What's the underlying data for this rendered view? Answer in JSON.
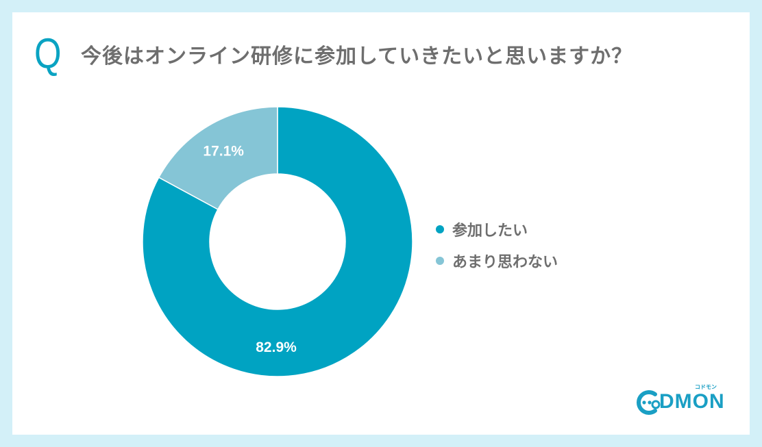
{
  "question_mark": "Q",
  "title": "今後はオンライン研修に参加していきたいと思いますか？",
  "colors": {
    "page_background": "#d3f0f8",
    "card_background": "#ffffff",
    "accent": "#0aa3c2",
    "series_primary": "#00a3c2",
    "series_secondary": "#85c5d6",
    "text": "#6e6e6e"
  },
  "legend": {
    "items": [
      {
        "label": "参加したい",
        "color": "#00a3c2"
      },
      {
        "label": "あまり思わない",
        "color": "#85c5d6"
      }
    ]
  },
  "labels": {
    "primary_pct": "82.9%",
    "secondary_pct": "17.1%"
  },
  "logo": {
    "text": "DMON",
    "subtext": "コドモン"
  },
  "chart_data": {
    "type": "pie",
    "variant": "donut",
    "title": "今後はオンライン研修に参加していきたいと思いますか？",
    "categories": [
      "参加したい",
      "あまり思わない"
    ],
    "values": [
      82.9,
      17.1
    ],
    "unit": "%",
    "colors": [
      "#00a3c2",
      "#85c5d6"
    ],
    "start_angle": "12 o'clock, clockwise",
    "legend_position": "right",
    "data_labels": [
      "82.9%",
      "17.1%"
    ]
  }
}
